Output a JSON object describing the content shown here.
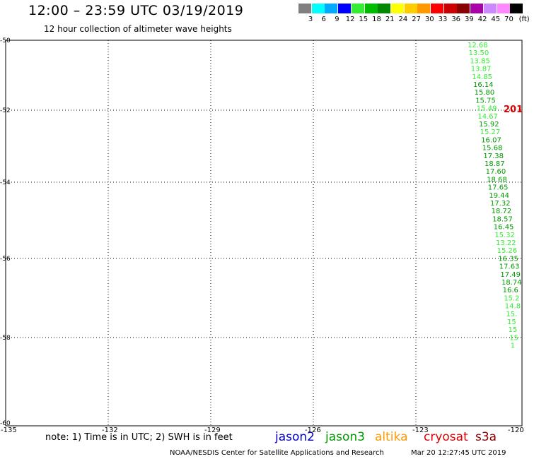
{
  "header": {
    "title": "12:00 – 23:59 UTC 03/19/2019",
    "subtitle": "12 hour collection of altimeter wave heights"
  },
  "color_scale": {
    "labels": [
      "3",
      "6",
      "9",
      "12",
      "15",
      "18",
      "21",
      "24",
      "27",
      "30",
      "33",
      "36",
      "39",
      "42",
      "45",
      "70",
      "(ft)"
    ],
    "colors": [
      "#808080",
      "#00ffff",
      "#00aaff",
      "#0000ff",
      "#33ee33",
      "#00bb00",
      "#008800",
      "#ffff00",
      "#ffcc00",
      "#ff9900",
      "#ff0000",
      "#cc0000",
      "#880000",
      "#aa00aa",
      "#cc88ff",
      "#ff88ff",
      "#000000"
    ]
  },
  "map": {
    "lon_labels": [
      "-135",
      "-132",
      "-129",
      "-126",
      "-123",
      "-120"
    ],
    "lat_labels": [
      "50",
      "52",
      "54",
      "56",
      "58",
      "60"
    ],
    "lat_label_prefix": "-"
  },
  "track": {
    "satellite": "jason3",
    "swh_values": [
      "12.68",
      "13.50",
      "13.85",
      "13.87",
      "14.85",
      "16.14",
      "15.80",
      "15.75",
      "15.49",
      "14.67",
      "15.92",
      "15.27",
      "16.07",
      "15.68",
      "17.38",
      "18.87",
      "17.60",
      "18.68",
      "17.65",
      "19.44",
      "17.32",
      "18.72",
      "18.57",
      "16.45",
      "15.32",
      "13.22",
      "15.26",
      "16.35",
      "17.63",
      "17.49",
      "18.74",
      "16.6",
      "15.2",
      "14.8",
      "15.",
      "15",
      "15",
      "15",
      "1"
    ],
    "time_label": "201"
  },
  "footer": {
    "note": "note: 1) Time is in UTC; 2) SWH is in feet",
    "satellites": [
      {
        "name": "jason2",
        "color": "#0000cc"
      },
      {
        "name": "jason3",
        "color": "#009900"
      },
      {
        "name": "altika",
        "color": "#ff9900"
      },
      {
        "name": "cryosat",
        "color": "#dd0000"
      },
      {
        "name": "s3a",
        "color": "#880000"
      }
    ],
    "credit": "NOAA/NESDIS Center for Satellite Applications and Research",
    "timestamp": "Mar 20 12:27:45 UTC 2019"
  }
}
